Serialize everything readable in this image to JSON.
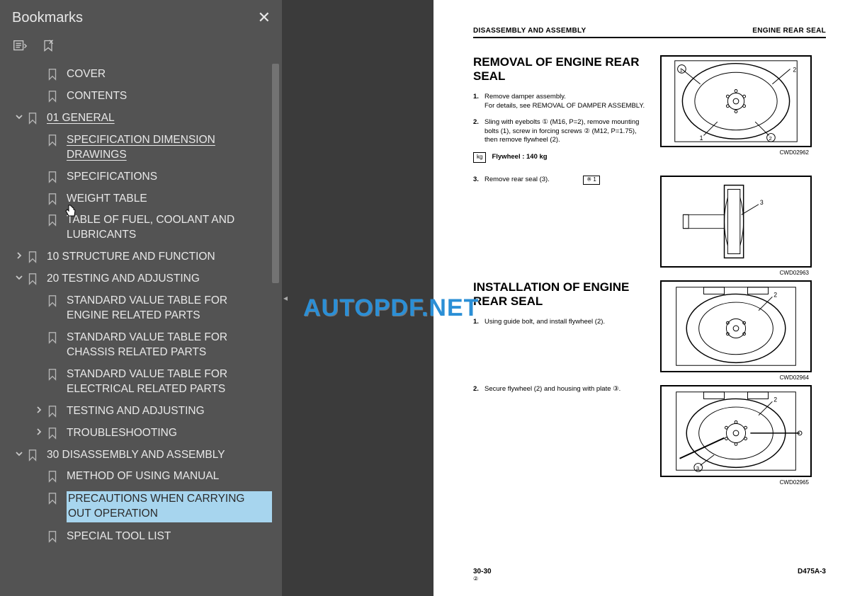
{
  "sidebar": {
    "title": "Bookmarks",
    "items": [
      {
        "label": "COVER",
        "indent": 1,
        "expand": ""
      },
      {
        "label": "CONTENTS",
        "indent": 1,
        "expand": ""
      },
      {
        "label": "01 GENERAL",
        "indent": 0,
        "expand": "expanded",
        "underlined": true
      },
      {
        "label": "SPECIFICATION DIMENSION DRAWINGS",
        "indent": 2,
        "expand": "",
        "underlined": true
      },
      {
        "label": "SPECIFICATIONS",
        "indent": 2,
        "expand": ""
      },
      {
        "label": "WEIGHT TABLE",
        "indent": 2,
        "expand": ""
      },
      {
        "label": "TABLE OF FUEL, COOLANT AND LUBRICANTS",
        "indent": 2,
        "expand": ""
      },
      {
        "label": "10 STRUCTURE AND FUNCTION",
        "indent": 0,
        "expand": "collapsed"
      },
      {
        "label": "20 TESTING AND ADJUSTING",
        "indent": 0,
        "expand": "expanded"
      },
      {
        "label": "STANDARD VALUE TABLE FOR ENGINE RELATED PARTS",
        "indent": 2,
        "expand": ""
      },
      {
        "label": "STANDARD VALUE TABLE FOR CHASSIS RELATED PARTS",
        "indent": 2,
        "expand": ""
      },
      {
        "label": "STANDARD VALUE TABLE FOR ELECTRICAL RELATED PARTS",
        "indent": 2,
        "expand": ""
      },
      {
        "label": "TESTING AND ADJUSTING",
        "indent": 1,
        "expand": "collapsed"
      },
      {
        "label": "TROUBLESHOOTING",
        "indent": 1,
        "expand": "collapsed"
      },
      {
        "label": "30 DISASSEMBLY AND ASSEMBLY",
        "indent": 0,
        "expand": "expanded"
      },
      {
        "label": "METHOD OF USING MANUAL",
        "indent": 2,
        "expand": ""
      },
      {
        "label": "PRECAUTIONS WHEN CARRYING OUT OPERATION",
        "indent": 2,
        "expand": "",
        "selected": true
      },
      {
        "label": "SPECIAL TOOL LIST",
        "indent": 2,
        "expand": ""
      }
    ]
  },
  "watermark": "AUTOPDF.NET",
  "document": {
    "header_left": "DISASSEMBLY AND ASSEMBLY",
    "header_right": "ENGINE REAR SEAL",
    "section1_title": "REMOVAL OF ENGINE REAR SEAL",
    "section1_step1_num": "1.",
    "section1_step1_text": "Remove damper assembly.\nFor details, see REMOVAL OF DAMPER ASSEMBLY.",
    "section1_step2_num": "2.",
    "section1_step2_text": "Sling with eyebolts ① (M16, P=2), remove mounting bolts (1), screw in forcing screws ② (M12, P=1.75), then remove flywheel (2).",
    "flywheel_label": "Flywheel : 140 kg",
    "kg_symbol": "kg",
    "section1_step3_num": "3.",
    "section1_step3_text": "Remove rear seal (3).",
    "ref_box": "※ 1",
    "section2_title": "INSTALLATION OF ENGINE REAR SEAL",
    "section2_step1_num": "1.",
    "section2_step1_text": "Using guide bolt, and install flywheel (2).",
    "section2_step2_num": "2.",
    "section2_step2_text": "Secure flywheel (2) and housing with plate ③.",
    "fig_labels": {
      "f1": "CWD02962",
      "f2": "CWD02963",
      "f3": "CWD02964",
      "f4": "CWD02965"
    },
    "footer_page": "30-30",
    "footer_sub": "②",
    "footer_model": "D475A-3"
  },
  "colors": {
    "sidebar_bg": "#535353",
    "sidebar_text": "#e8e8e8",
    "selected_bg": "#a7d5ee",
    "gutter_bg": "#3b3b3b",
    "watermark": "#2b8fd6",
    "page_bg": "#ffffff"
  }
}
